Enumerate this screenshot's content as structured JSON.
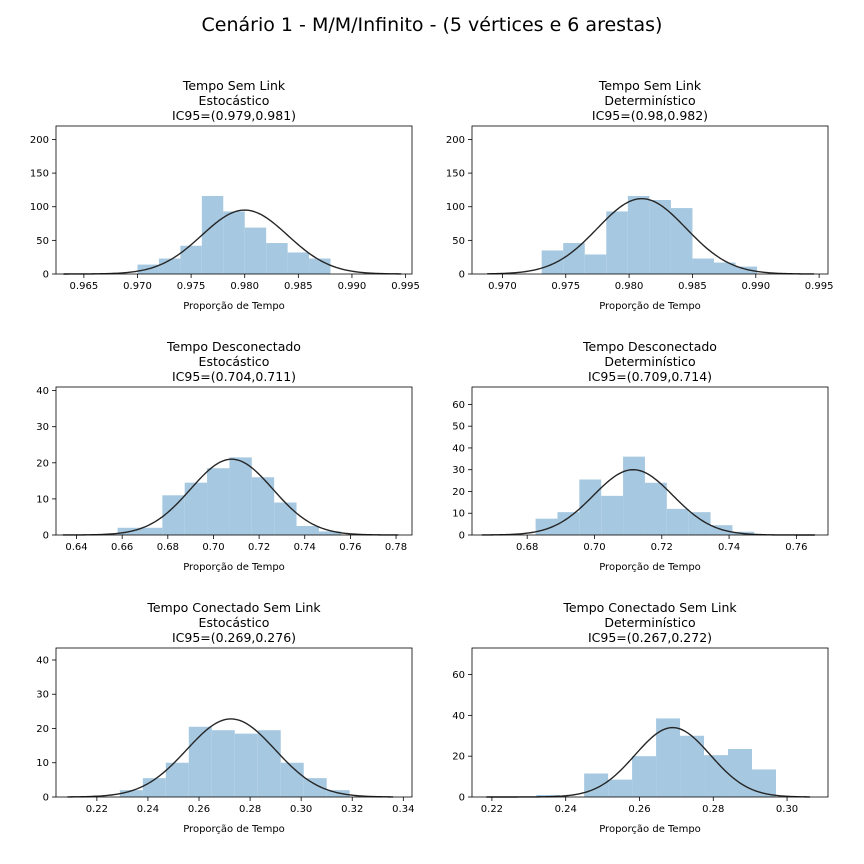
{
  "figure": {
    "suptitle": "Cenário 1 - M/M/Infinito - (5 vértices e 6 arestas)"
  },
  "style": {
    "bar_color": "#a6c8e0",
    "line_color": "#262626",
    "axis_color": "#000000"
  },
  "chart_data": [
    {
      "type": "bar",
      "title_lines": [
        "Tempo Sem Link",
        "Estocástico",
        "IC95=(0.979,0.981)"
      ],
      "xlabel": "Proporção de Tempo",
      "xlim": [
        0.9624,
        0.9956
      ],
      "ylim": [
        0,
        220
      ],
      "xticks": [
        0.965,
        0.97,
        0.975,
        0.98,
        0.985,
        0.99,
        0.995
      ],
      "xtick_labels": [
        "0.965",
        "0.970",
        "0.975",
        "0.980",
        "0.985",
        "0.990",
        "0.995"
      ],
      "yticks": [
        0,
        50,
        100,
        150,
        200
      ],
      "ytick_labels": [
        "0",
        "50",
        "100",
        "150",
        "200"
      ],
      "bin_edges": [
        0.97,
        0.972,
        0.974,
        0.976,
        0.978,
        0.98,
        0.982,
        0.984,
        0.986,
        0.988,
        0.99
      ],
      "values": [
        14,
        23,
        42,
        116,
        93,
        69,
        46,
        32,
        23,
        0
      ],
      "pdf_curve": {
        "mean": 0.98,
        "sd": 0.004,
        "peak": 95,
        "x_range": [
          0.9631,
          0.9946
        ]
      }
    },
    {
      "type": "bar",
      "title_lines": [
        "Tempo Sem Link",
        "Determinístico",
        "IC95=(0.98,0.982)"
      ],
      "xlabel": "Proporção de Tempo",
      "xlim": [
        0.9676,
        0.9957
      ],
      "ylim": [
        0,
        220
      ],
      "xticks": [
        0.97,
        0.975,
        0.98,
        0.985,
        0.99,
        0.995
      ],
      "xtick_labels": [
        "0.970",
        "0.975",
        "0.980",
        "0.985",
        "0.990",
        "0.995"
      ],
      "yticks": [
        0,
        50,
        100,
        150,
        200
      ],
      "ytick_labels": [
        "0",
        "50",
        "100",
        "150",
        "200"
      ],
      "bin_edges": [
        0.9731,
        0.9748,
        0.9765,
        0.9782,
        0.9799,
        0.9816,
        0.9833,
        0.985,
        0.9867,
        0.9884,
        0.9901
      ],
      "values": [
        35,
        46,
        29,
        93,
        116,
        110,
        98,
        23,
        17,
        11
      ],
      "pdf_curve": {
        "mean": 0.981,
        "sd": 0.0035,
        "peak": 112,
        "x_range": [
          0.9688,
          0.9946
        ]
      }
    },
    {
      "type": "bar",
      "title_lines": [
        "Tempo Desconectado",
        "Estocástico",
        "IC95=(0.704,0.711)"
      ],
      "xlabel": "Proporção de Tempo",
      "xlim": [
        0.631,
        0.787
      ],
      "ylim": [
        0,
        41
      ],
      "xticks": [
        0.64,
        0.66,
        0.68,
        0.7,
        0.72,
        0.74,
        0.76,
        0.78
      ],
      "xtick_labels": [
        "0.64",
        "0.66",
        "0.68",
        "0.70",
        "0.72",
        "0.74",
        "0.76",
        "0.78"
      ],
      "yticks": [
        0,
        10,
        20,
        30,
        40
      ],
      "ytick_labels": [
        "0",
        "10",
        "20",
        "30",
        "40"
      ],
      "bin_edges": [
        0.658,
        0.6678,
        0.6776,
        0.6874,
        0.6972,
        0.707,
        0.7168,
        0.7266,
        0.7364,
        0.7462,
        0.756
      ],
      "values": [
        2,
        2,
        11,
        14.5,
        18.5,
        21.5,
        16,
        9,
        2.5,
        1
      ],
      "pdf_curve": {
        "mean": 0.708,
        "sd": 0.018,
        "peak": 21,
        "x_range": [
          0.634,
          0.781
        ]
      }
    },
    {
      "type": "bar",
      "title_lines": [
        "Tempo Desconectado",
        "Determinístico",
        "IC95=(0.709,0.714)"
      ],
      "xlabel": "Proporção de Tempo",
      "xlim": [
        0.6636,
        0.7694
      ],
      "ylim": [
        0,
        68
      ],
      "xticks": [
        0.68,
        0.7,
        0.72,
        0.74,
        0.76
      ],
      "xtick_labels": [
        "0.68",
        "0.70",
        "0.72",
        "0.74",
        "0.76"
      ],
      "yticks": [
        0,
        10,
        20,
        30,
        40,
        50,
        60
      ],
      "ytick_labels": [
        "0",
        "10",
        "20",
        "30",
        "40",
        "50",
        "60"
      ],
      "bin_edges": [
        0.6825,
        0.689,
        0.6955,
        0.702,
        0.7085,
        0.715,
        0.7215,
        0.728,
        0.7345,
        0.741,
        0.7475
      ],
      "values": [
        7.5,
        10.5,
        25.5,
        18,
        36,
        24,
        12,
        10.5,
        4.5,
        1.5
      ],
      "pdf_curve": {
        "mean": 0.7115,
        "sd": 0.0118,
        "peak": 30,
        "x_range": [
          0.6665,
          0.7655
        ]
      }
    },
    {
      "type": "bar",
      "title_lines": [
        "Tempo Conectado Sem Link",
        "Estocástico",
        "IC95=(0.269,0.276)"
      ],
      "xlabel": "Proporção de Tempo",
      "xlim": [
        0.204,
        0.3434
      ],
      "ylim": [
        0,
        43.5
      ],
      "xticks": [
        0.22,
        0.24,
        0.26,
        0.28,
        0.3,
        0.32,
        0.34
      ],
      "xtick_labels": [
        "0.22",
        "0.24",
        "0.26",
        "0.28",
        "0.30",
        "0.32",
        "0.34"
      ],
      "yticks": [
        0,
        10,
        20,
        30,
        40
      ],
      "ytick_labels": [
        "0",
        "10",
        "20",
        "30",
        "40"
      ],
      "bin_edges": [
        0.229,
        0.238,
        0.247,
        0.256,
        0.265,
        0.274,
        0.283,
        0.292,
        0.301,
        0.31,
        0.319
      ],
      "values": [
        2,
        5.5,
        10,
        20.5,
        19.5,
        18.5,
        19.5,
        10,
        5.5,
        2
      ],
      "pdf_curve": {
        "mean": 0.2725,
        "sd": 0.0173,
        "peak": 22.8,
        "x_range": [
          0.2085,
          0.336
        ]
      }
    },
    {
      "type": "bar",
      "title_lines": [
        "Tempo Conectado Sem Link",
        "Determinístico",
        "IC95=(0.267,0.272)"
      ],
      "xlabel": "Proporção de Tempo",
      "xlim": [
        0.2146,
        0.3111
      ],
      "ylim": [
        0,
        73
      ],
      "xticks": [
        0.22,
        0.24,
        0.26,
        0.28,
        0.3
      ],
      "xtick_labels": [
        "0.22",
        "0.24",
        "0.26",
        "0.28",
        "0.30"
      ],
      "yticks": [
        0,
        20,
        40,
        60
      ],
      "ytick_labels": [
        "0",
        "20",
        "40",
        "60"
      ],
      "bin_edges": [
        0.232,
        0.2385,
        0.245,
        0.2515,
        0.258,
        0.2645,
        0.271,
        0.2775,
        0.284,
        0.2905,
        0.297
      ],
      "values": [
        1,
        0,
        11.5,
        8.5,
        20,
        38.5,
        30,
        20.5,
        23.5,
        13.5
      ],
      "pdf_curve": {
        "mean": 0.269,
        "sd": 0.0102,
        "peak": 34,
        "x_range": [
          0.2185,
          0.3062
        ]
      }
    }
  ]
}
